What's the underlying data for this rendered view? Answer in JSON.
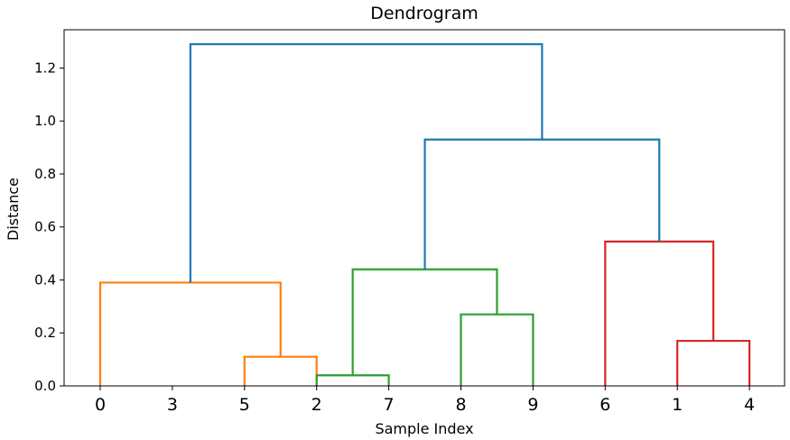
{
  "chart_data": {
    "type": "dendrogram",
    "title": "Dendrogram",
    "xlabel": "Sample Index",
    "ylabel": "Distance",
    "ylim": [
      0,
      1.35
    ],
    "yticks": [
      "0.0",
      "0.2",
      "0.4",
      "0.6",
      "0.8",
      "1.0",
      "1.2"
    ],
    "leaf_order": [
      "0",
      "3",
      "5",
      "2",
      "7",
      "8",
      "9",
      "6",
      "1",
      "4"
    ],
    "colors": {
      "above_threshold": "#1f77b4",
      "cluster_1": "#ff7f0e",
      "cluster_2": "#2ca02c",
      "cluster_3": "#d62728"
    },
    "links": [
      {
        "x": [
          2,
          3
        ],
        "height": 0.11,
        "color": "cluster_1"
      },
      {
        "x": [
          0,
          2.5
        ],
        "height": 0.39,
        "color": "cluster_1"
      },
      {
        "x": [
          3,
          4
        ],
        "height": 0.04,
        "color": "cluster_2"
      },
      {
        "x": [
          5,
          6
        ],
        "height": 0.27,
        "color": "cluster_2"
      },
      {
        "x": [
          3.5,
          5.5
        ],
        "height": 0.44,
        "color": "cluster_2"
      },
      {
        "x": [
          8,
          9
        ],
        "height": 0.17,
        "color": "cluster_3"
      },
      {
        "x": [
          7,
          8.5
        ],
        "height": 0.545,
        "color": "cluster_3"
      },
      {
        "x": [
          4.5,
          7.75
        ],
        "height": 0.93,
        "color": "above_threshold"
      },
      {
        "x": [
          1.25,
          6.125
        ],
        "height": 1.29,
        "color": "above_threshold"
      }
    ]
  }
}
